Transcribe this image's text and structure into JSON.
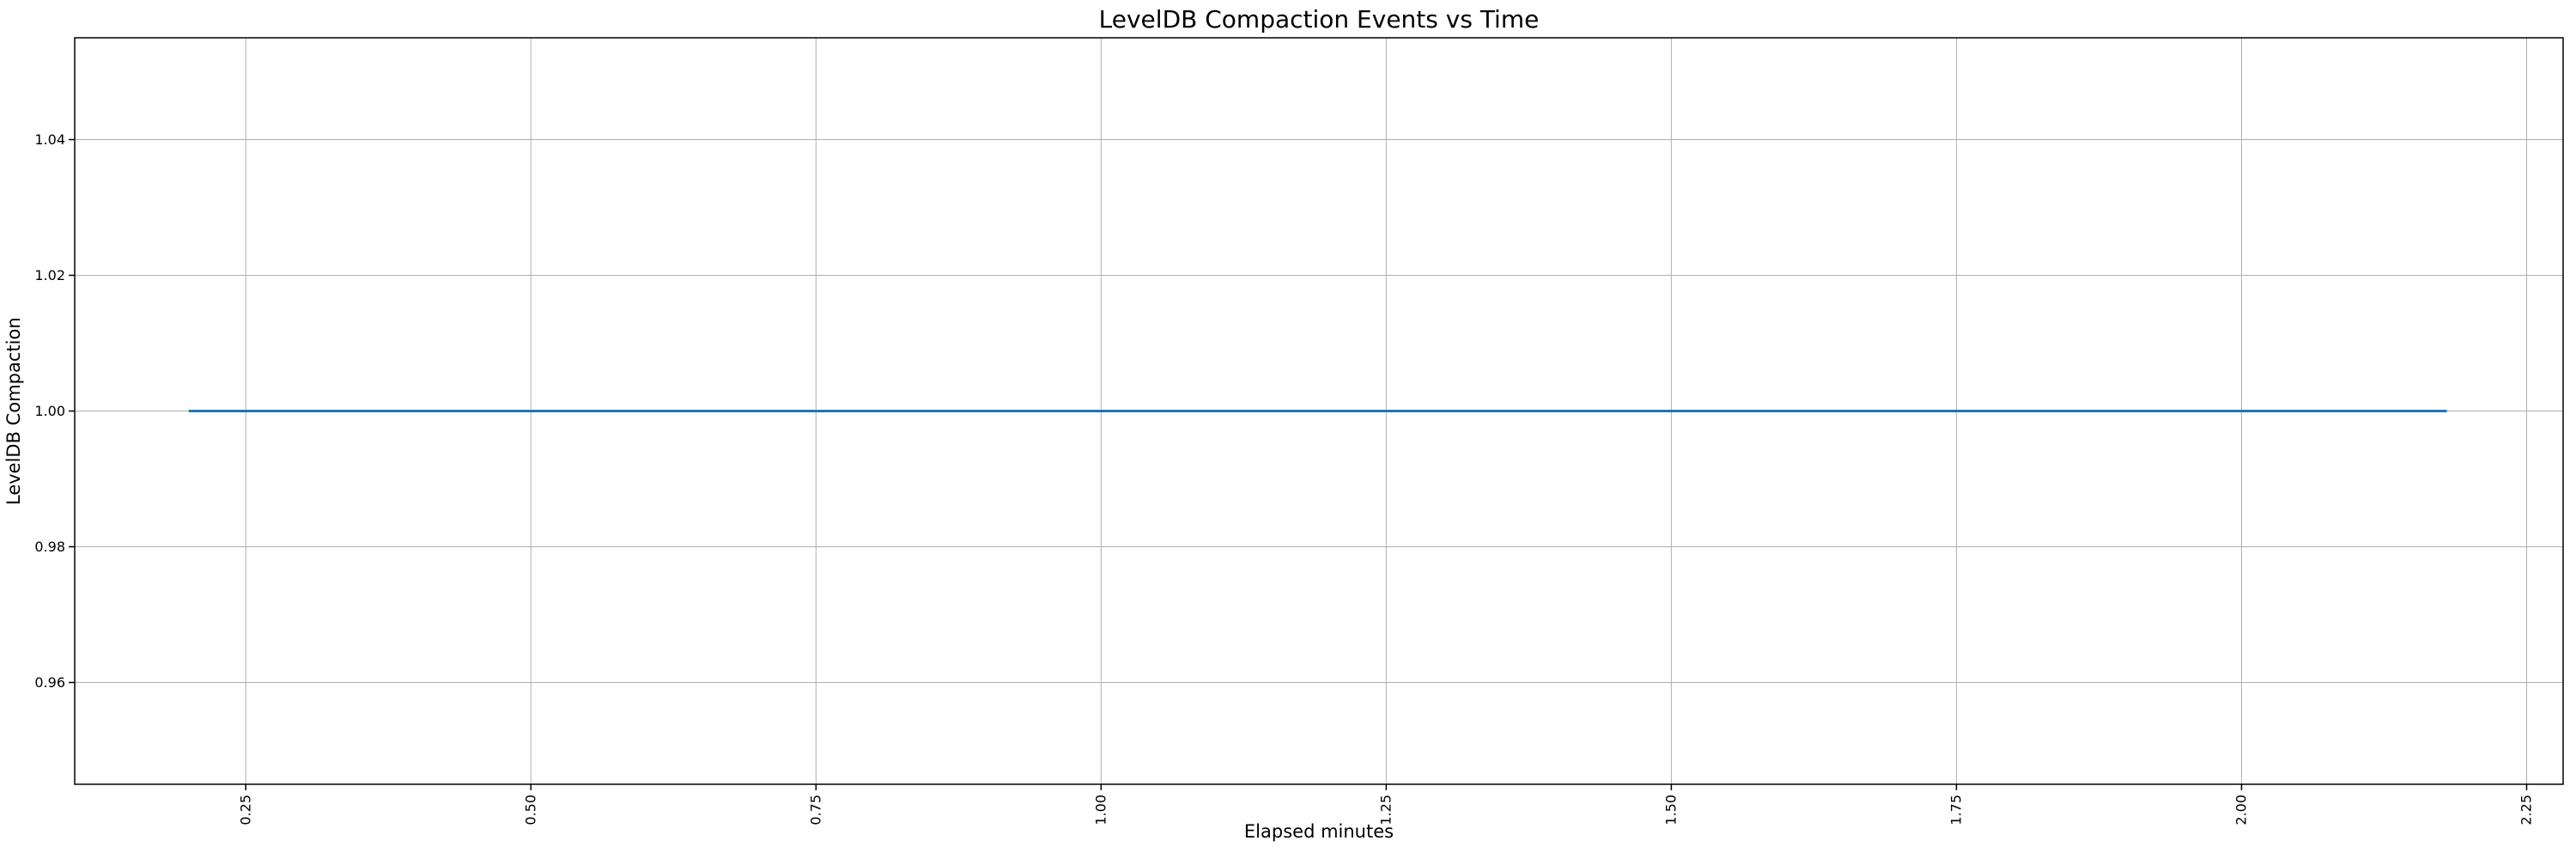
{
  "chart_data": {
    "type": "line",
    "title": "LevelDB Compaction Events vs Time",
    "xlabel": "Elapsed minutes",
    "ylabel": "LevelDB Compaction",
    "series": [
      {
        "name": "LevelDB Compaction",
        "x": [
          0.2,
          2.18
        ],
        "y": [
          1.0,
          1.0
        ],
        "note": "constant value 1.0 across entire elapsed range"
      }
    ],
    "xlim": [
      0.1,
      2.282
    ],
    "ylim": [
      0.945,
      1.055
    ],
    "xticks": [
      0.25,
      0.5,
      0.75,
      1.0,
      1.25,
      1.5,
      1.75,
      2.0,
      2.25
    ],
    "xtick_labels": [
      "0.25",
      "0.50",
      "0.75",
      "1.00",
      "1.25",
      "1.50",
      "1.75",
      "2.00",
      "2.25"
    ],
    "yticks": [
      0.96,
      0.98,
      1.0,
      1.02,
      1.04
    ],
    "ytick_labels": [
      "0.96",
      "0.98",
      "1.00",
      "1.02",
      "1.04"
    ],
    "grid": true,
    "legend": false,
    "xtick_rotation": 90,
    "line_color": "#1f77b4",
    "grid_color": "#b0b0b0",
    "spine_color": "#000000",
    "background": "#ffffff"
  }
}
